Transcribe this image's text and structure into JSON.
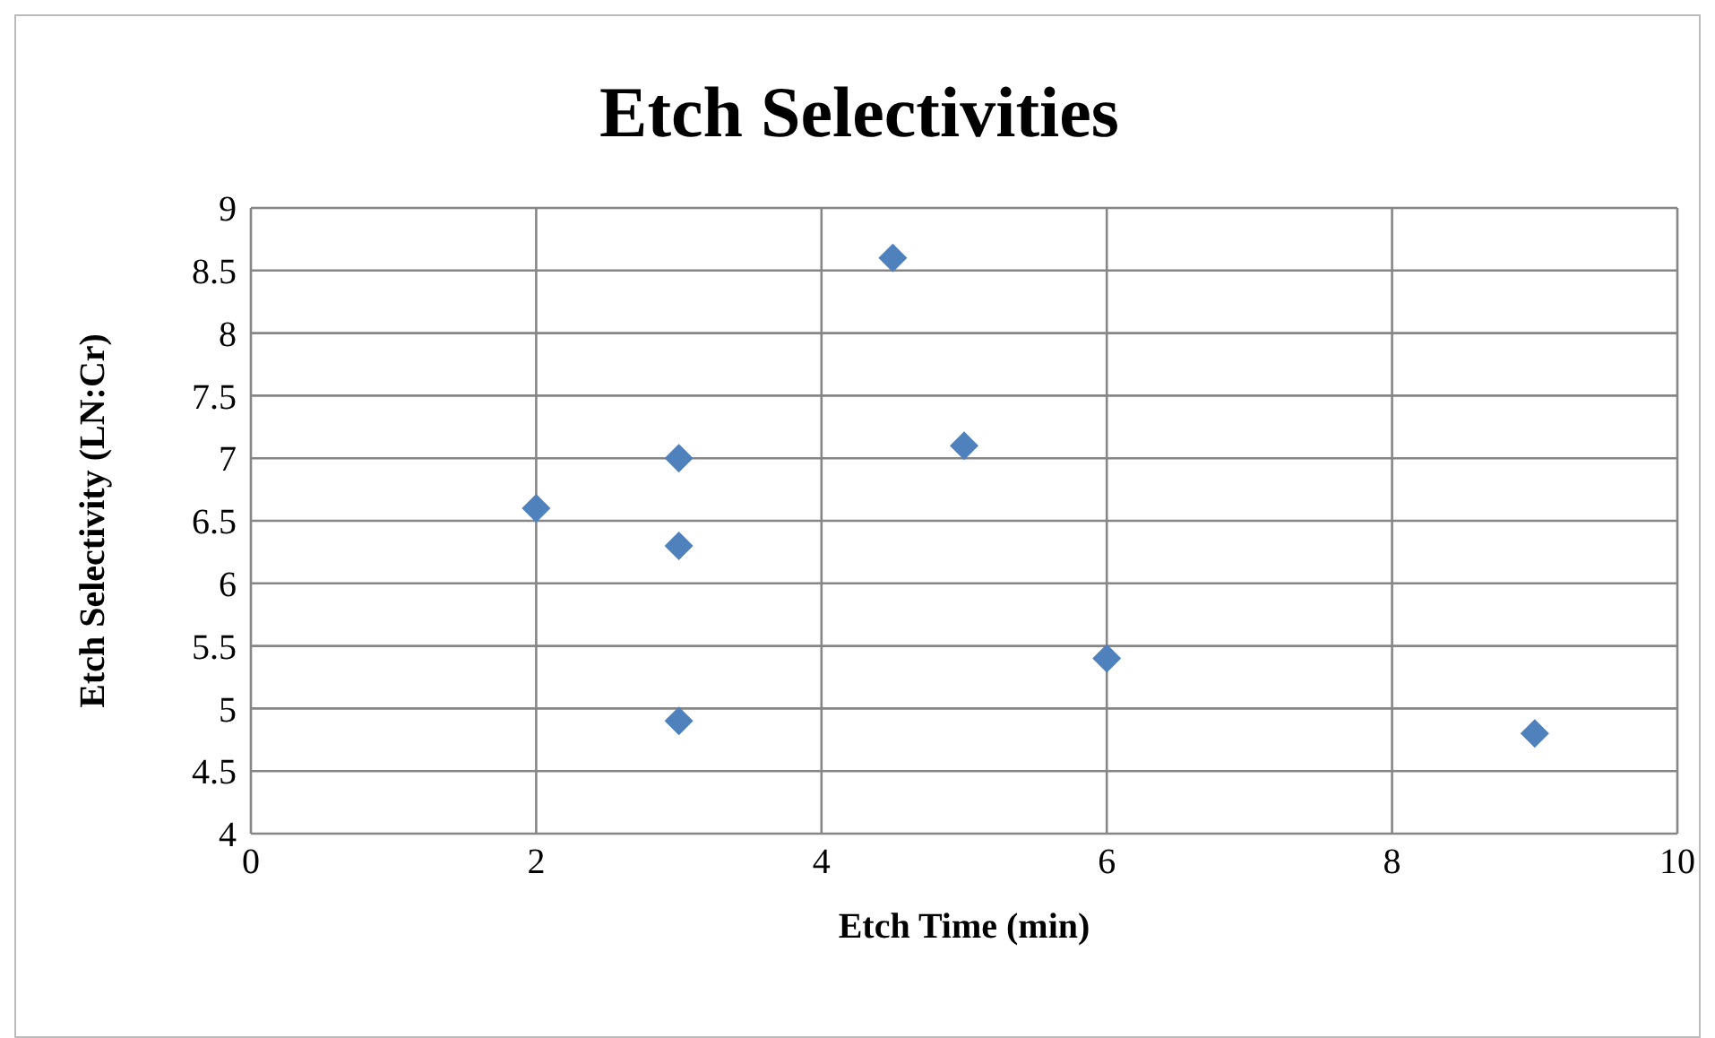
{
  "chart_data": {
    "type": "scatter",
    "title": "Etch Selectivities",
    "xlabel": "Etch Time (min)",
    "ylabel": "Etch Selectivity (LN:Cr)",
    "x": [
      2,
      3,
      3,
      3,
      4.5,
      5,
      6,
      9
    ],
    "series": [
      {
        "color": "#4f81bd",
        "values": [
          6.6,
          7.0,
          6.3,
          4.9,
          8.6,
          7.1,
          5.4,
          4.8
        ]
      }
    ],
    "xlim": [
      0,
      10
    ],
    "xticks": [
      0,
      2,
      4,
      6,
      8,
      10
    ],
    "ylim": [
      4,
      9
    ],
    "yticks": [
      4,
      4.5,
      5,
      5.5,
      6,
      6.5,
      7,
      7.5,
      8,
      8.5,
      9
    ],
    "grid": true,
    "legend": false,
    "marker": "diamond"
  }
}
